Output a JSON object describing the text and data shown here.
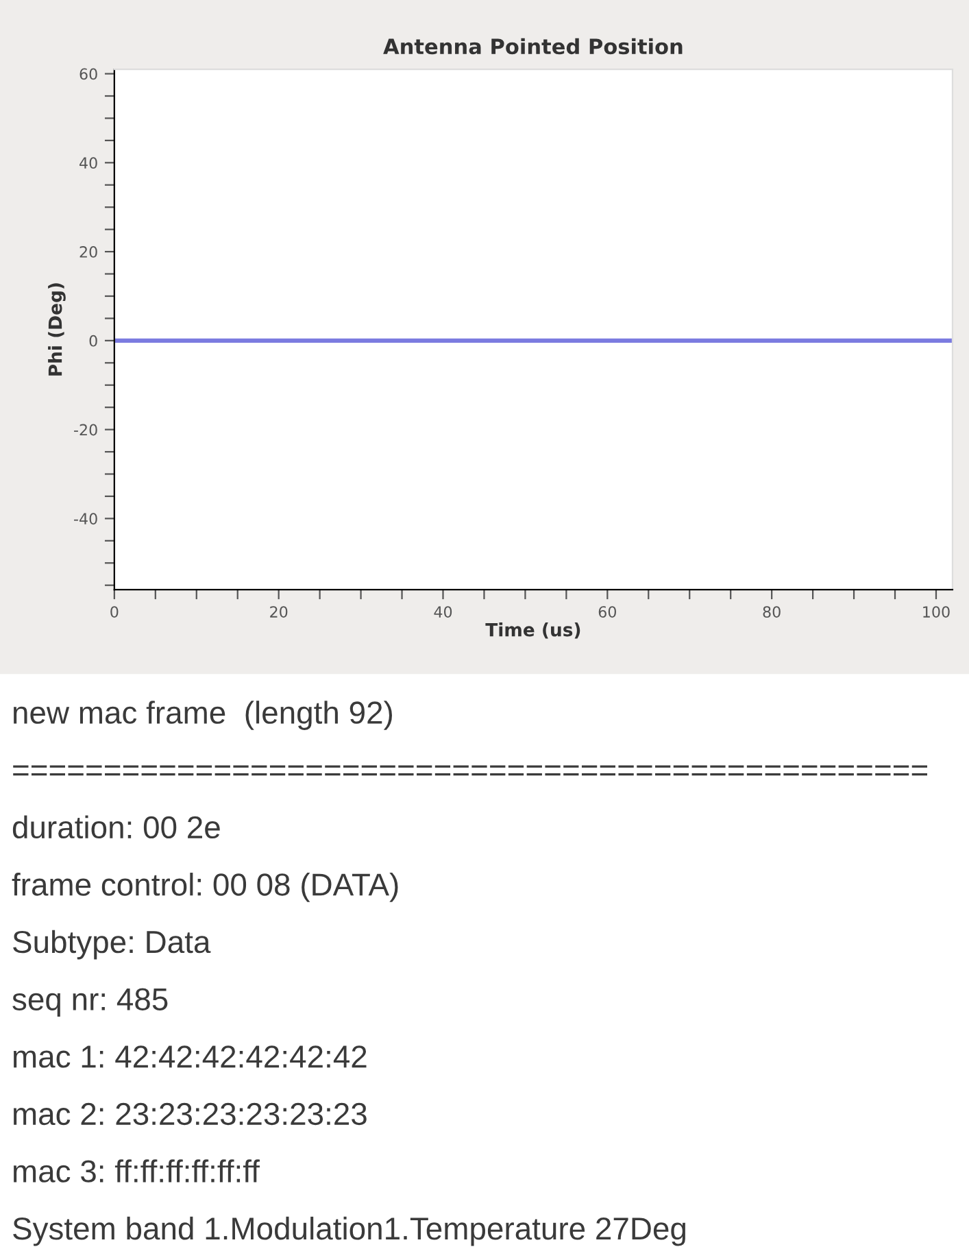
{
  "chart_data": [
    {
      "type": "line",
      "title": "Antenna Pointed Position",
      "xlabel": "Time (us)",
      "ylabel": "Phi (Deg)",
      "series": [
        {
          "color": "#7b7be0",
          "x": [
            0,
            102
          ],
          "values": [
            0,
            0
          ]
        }
      ],
      "xlim": [
        0,
        102
      ],
      "ylim": [
        -56,
        61
      ],
      "xticks": [
        0,
        {
          "value": 5,
          "label": null
        },
        {
          "value": 10,
          "label": null
        },
        {
          "value": 15,
          "label": null
        },
        20,
        {
          "value": 25,
          "label": null
        },
        {
          "value": 30,
          "label": null
        },
        {
          "value": 35,
          "label": null
        },
        40,
        {
          "value": 45,
          "label": null
        },
        {
          "value": 50,
          "label": null
        },
        {
          "value": 55,
          "label": null
        },
        60,
        {
          "value": 65,
          "label": null
        },
        {
          "value": 70,
          "label": null
        },
        {
          "value": 75,
          "label": null
        },
        80,
        {
          "value": 85,
          "label": null
        },
        {
          "value": 90,
          "label": null
        },
        {
          "value": 95,
          "label": null
        },
        100
      ],
      "yticks": [
        {
          "value": -55,
          "label": null
        },
        {
          "value": -50,
          "label": null
        },
        {
          "value": -45,
          "label": null
        },
        -40,
        {
          "value": -35,
          "label": null
        },
        {
          "value": -30,
          "label": null
        },
        {
          "value": -25,
          "label": null
        },
        -20,
        {
          "value": -15,
          "label": null
        },
        {
          "value": -10,
          "label": null
        },
        {
          "value": -5,
          "label": null
        },
        0,
        {
          "value": 5,
          "label": null
        },
        {
          "value": 10,
          "label": null
        },
        {
          "value": 15,
          "label": null
        },
        20,
        {
          "value": 25,
          "label": null
        },
        {
          "value": 30,
          "label": null
        },
        {
          "value": 35,
          "label": null
        },
        40,
        {
          "value": 45,
          "label": null
        },
        {
          "value": 50,
          "label": null
        },
        {
          "value": 55,
          "label": null
        },
        60
      ],
      "grid": false,
      "legend": false,
      "marker": "none",
      "line_style": "solid"
    },
    {
      "type": "other",
      "annotations": [
        "new mac frame  (length 92)",
        "==================================================",
        "duration: 00 2e",
        "frame control: 00 08 (DATA)",
        "Subtype: Data",
        "seq nr: 485",
        "mac 1: 42:42:42:42:42:42",
        "mac 2: 23:23:23:23:23:23",
        "mac 3: ff:ff:ff:ff:ff:ff",
        "System band 1.Modulation1.Temperature 27Deg"
      ]
    }
  ]
}
